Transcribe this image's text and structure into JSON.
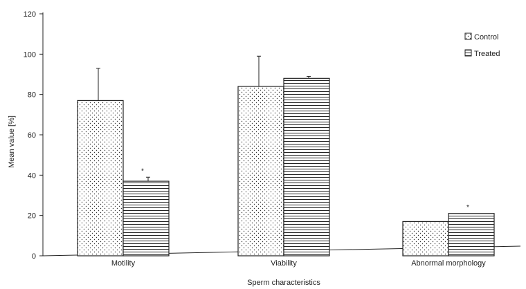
{
  "chart_data": {
    "type": "bar",
    "categories": [
      "Motility",
      "Viability",
      "Abnormal morphology"
    ],
    "series": [
      {
        "name": "Control",
        "values": [
          77,
          84,
          17
        ],
        "errors": [
          16,
          15,
          0
        ],
        "significance": [
          "",
          "",
          ""
        ],
        "pattern": "dots"
      },
      {
        "name": "Treated",
        "values": [
          37,
          88,
          21
        ],
        "errors": [
          2,
          1,
          0
        ],
        "significance": [
          "*",
          "",
          "*"
        ],
        "pattern": "hlines"
      }
    ],
    "xlabel": "Sperm characteristics",
    "ylabel": "Mean value [%]",
    "ylim": [
      0,
      120
    ],
    "yticks": [
      "0",
      "20",
      "40",
      "60",
      "80",
      "100",
      "120"
    ],
    "grid": false,
    "legend_position": "top-right"
  }
}
